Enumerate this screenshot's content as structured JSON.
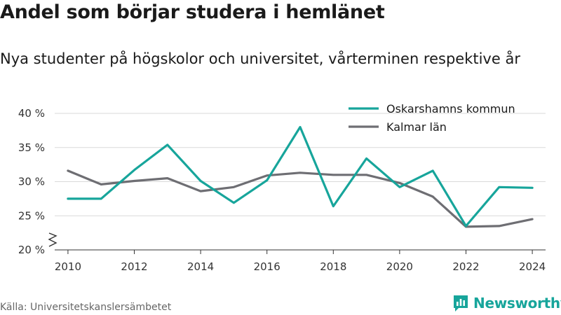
{
  "header": {
    "title": "Andel som börjar studera i hemlänet",
    "subtitle": "Nya studenter på högskolor och universitet, vårterminen respektive år"
  },
  "footer": {
    "source": "Källa: Universitetskanslersämbetet",
    "brand": "Newsworthy",
    "brand_icon": "newsworthy-logo-icon",
    "brand_color": "#17a59b"
  },
  "chart_data": {
    "type": "line",
    "x": [
      2010,
      2011,
      2012,
      2013,
      2014,
      2015,
      2016,
      2017,
      2018,
      2019,
      2020,
      2021,
      2022,
      2023,
      2024
    ],
    "x_ticks": [
      "2010",
      "2012",
      "2014",
      "2016",
      "2018",
      "2020",
      "2022",
      "2024"
    ],
    "y_ticks": [
      "20 %",
      "25 %",
      "30 %",
      "35 %",
      "40 %"
    ],
    "ylim": [
      20,
      40
    ],
    "xlim": [
      2009.6,
      2024.4
    ],
    "grid": true,
    "axis_break": true,
    "legend_position": "top-right",
    "series": [
      {
        "name": "Oskarshamns kommun",
        "color": "#17a59b",
        "values": [
          27.5,
          27.5,
          31.7,
          35.4,
          30.1,
          26.9,
          30.2,
          38.0,
          26.4,
          33.4,
          29.2,
          31.6,
          23.5,
          29.2,
          29.1
        ]
      },
      {
        "name": "Kalmar län",
        "color": "#6e6e73",
        "values": [
          31.6,
          29.6,
          30.1,
          30.5,
          28.6,
          29.2,
          30.9,
          31.3,
          31.0,
          31.0,
          29.8,
          27.8,
          23.4,
          23.5,
          24.5
        ]
      }
    ]
  }
}
